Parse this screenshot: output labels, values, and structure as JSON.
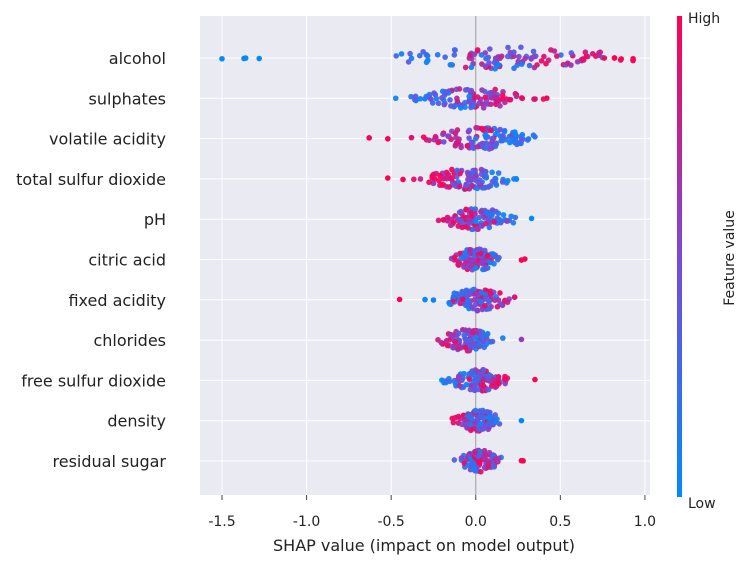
{
  "chart_data": {
    "type": "scatter",
    "subtype": "shap-beeswarm",
    "title": "",
    "xlabel": "SHAP value (impact on model output)",
    "xlim": [
      -1.63,
      1.03
    ],
    "xticks": [
      -1.5,
      -1.0,
      -0.5,
      0.0,
      0.5,
      1.0
    ],
    "xtick_labels": [
      "-1.5",
      "-1.0",
      "-0.5",
      "0.0",
      "0.5",
      "1.0"
    ],
    "grid": true,
    "colorbar": {
      "label": "Feature value",
      "high_label": "High",
      "low_label": "Low",
      "low_color": "#008bfb",
      "high_color": "#ff0052"
    },
    "colors": {
      "plot_bg": "#eaeaf2",
      "grid": "#ffffff",
      "zero_line": "#999999"
    },
    "features": [
      {
        "name": "alcohol",
        "range": [
          -1.5,
          0.93
        ],
        "outliers": [
          [
            -1.5,
            0.0
          ],
          [
            -1.37,
            0.1
          ],
          [
            -1.36,
            0.0
          ],
          [
            -1.28,
            0.0
          ],
          [
            0.82,
            1.0
          ],
          [
            0.86,
            1.0
          ],
          [
            0.93,
            1.0
          ]
        ],
        "low_center": -0.22,
        "high_center": 0.6
      },
      {
        "name": "sulphates",
        "range": [
          -0.52,
          0.42
        ],
        "outliers": [
          [
            0.42,
            0.95
          ]
        ],
        "low_center": -0.25,
        "high_center": 0.22
      },
      {
        "name": "volatile acidity",
        "range": [
          -0.63,
          0.35
        ],
        "outliers": [
          [
            -0.63,
            1.0
          ],
          [
            -0.52,
            1.0
          ],
          [
            -0.38,
            0.9
          ]
        ],
        "low_center": 0.2,
        "high_center": -0.15
      },
      {
        "name": "total sulfur dioxide",
        "range": [
          -0.52,
          0.27
        ],
        "outliers": [
          [
            -0.52,
            1.0
          ],
          [
            -0.43,
            1.0
          ]
        ],
        "low_center": 0.1,
        "high_center": -0.2
      },
      {
        "name": "pH",
        "range": [
          -0.37,
          0.33
        ],
        "outliers": [
          [
            0.33,
            0.0
          ]
        ],
        "low_center": 0.12,
        "high_center": -0.1
      },
      {
        "name": "citric acid",
        "range": [
          -0.21,
          0.29
        ],
        "outliers": [
          [
            0.27,
            1.0
          ],
          [
            0.29,
            1.0
          ]
        ],
        "low_center": 0.05,
        "high_center": -0.05
      },
      {
        "name": "fixed acidity",
        "range": [
          -0.45,
          0.23
        ],
        "outliers": [
          [
            -0.45,
            1.0
          ],
          [
            -0.3,
            0.05
          ],
          [
            -0.25,
            0.05
          ]
        ],
        "low_center": -0.05,
        "high_center": 0.08
      },
      {
        "name": "chlorides",
        "range": [
          -0.27,
          0.27
        ],
        "outliers": [
          [
            0.27,
            0.6
          ]
        ],
        "low_center": 0.03,
        "high_center": -0.12
      },
      {
        "name": "free sulfur dioxide",
        "range": [
          -0.23,
          0.35
        ],
        "outliers": [
          [
            0.35,
            1.0
          ]
        ],
        "low_center": -0.08,
        "high_center": 0.12
      },
      {
        "name": "density",
        "range": [
          -0.17,
          0.27
        ],
        "outliers": [
          [
            0.27,
            0.0
          ]
        ],
        "low_center": 0.08,
        "high_center": -0.05
      },
      {
        "name": "residual sugar",
        "range": [
          -0.14,
          0.28
        ],
        "outliers": [
          [
            0.27,
            1.0
          ],
          [
            0.28,
            1.0
          ]
        ],
        "low_center": 0.0,
        "high_center": 0.05
      }
    ]
  }
}
